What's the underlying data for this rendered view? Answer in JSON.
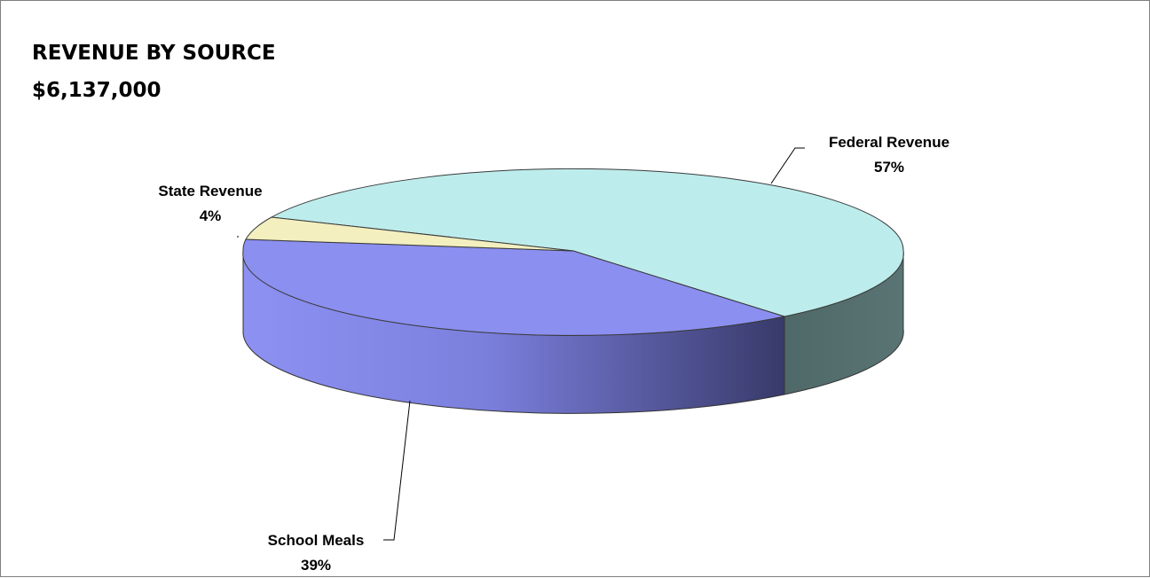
{
  "header": {
    "title": "REVENUE BY SOURCE",
    "subtitle": "$6,137,000"
  },
  "chart_data": {
    "type": "pie",
    "title": "REVENUE BY SOURCE",
    "subtitle": "$6,137,000",
    "style": "3d",
    "slices": [
      {
        "name": "Federal Revenue",
        "percent": 57,
        "percent_label": "57%",
        "color": "#bdecec",
        "side_color": "#4f6a6a"
      },
      {
        "name": "School Meals",
        "percent": 39,
        "percent_label": "39%",
        "color": "#8b8ff0",
        "side_color": "#6f72c8"
      },
      {
        "name": "State Revenue",
        "percent": 4,
        "percent_label": "4%",
        "color": "#f3efbf",
        "side_color": "#bdb98f"
      }
    ]
  }
}
